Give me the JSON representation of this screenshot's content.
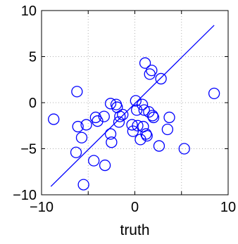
{
  "chart_data": {
    "type": "scatter",
    "title": "",
    "xlabel": "truth",
    "ylabel": "",
    "xlim": [
      -10,
      10
    ],
    "ylim": [
      -10,
      10
    ],
    "xticks": [
      -10,
      0,
      10
    ],
    "yticks": [
      -10,
      -5,
      0,
      5,
      10
    ],
    "xtick_labels": [
      "−10",
      "0",
      "10"
    ],
    "ytick_labels": [
      "−10",
      "−5",
      "0",
      "5",
      "10"
    ],
    "grid": true,
    "color": "#0000ff",
    "points": [
      {
        "x": -8.7,
        "y": -1.8
      },
      {
        "x": -6.2,
        "y": 1.2
      },
      {
        "x": -6.1,
        "y": -2.6
      },
      {
        "x": -6.3,
        "y": -5.4
      },
      {
        "x": -5.7,
        "y": -3.8
      },
      {
        "x": -5.5,
        "y": -8.9
      },
      {
        "x": -5.2,
        "y": -2.4
      },
      {
        "x": -4.4,
        "y": -6.3
      },
      {
        "x": -4.2,
        "y": -1.6
      },
      {
        "x": -4.0,
        "y": -2.0
      },
      {
        "x": -3.3,
        "y": -1.5
      },
      {
        "x": -3.2,
        "y": -6.8
      },
      {
        "x": -2.6,
        "y": -0.1
      },
      {
        "x": -2.6,
        "y": -3.4
      },
      {
        "x": -2.5,
        "y": -4.3
      },
      {
        "x": -2.0,
        "y": -0.2
      },
      {
        "x": -1.9,
        "y": -0.5
      },
      {
        "x": -1.7,
        "y": -2.1
      },
      {
        "x": -1.6,
        "y": -1.5
      },
      {
        "x": -1.3,
        "y": -1.3
      },
      {
        "x": -0.3,
        "y": -2.4
      },
      {
        "x": -0.2,
        "y": -3.1
      },
      {
        "x": 0.1,
        "y": 0.2
      },
      {
        "x": 0.2,
        "y": -0.8
      },
      {
        "x": 0.3,
        "y": -2.5
      },
      {
        "x": 0.6,
        "y": -4.0
      },
      {
        "x": 0.8,
        "y": -0.2
      },
      {
        "x": 0.9,
        "y": -2.6
      },
      {
        "x": 1.0,
        "y": -0.8
      },
      {
        "x": 1.1,
        "y": 4.3
      },
      {
        "x": 1.2,
        "y": -3.4
      },
      {
        "x": 1.3,
        "y": -3.6
      },
      {
        "x": 1.5,
        "y": -1.0
      },
      {
        "x": 1.6,
        "y": 3.1
      },
      {
        "x": 1.8,
        "y": 3.5
      },
      {
        "x": 1.9,
        "y": -1.4
      },
      {
        "x": 2.0,
        "y": -1.6
      },
      {
        "x": 2.6,
        "y": -4.7
      },
      {
        "x": 2.8,
        "y": 2.6
      },
      {
        "x": 3.5,
        "y": -2.9
      },
      {
        "x": 3.7,
        "y": -1.6
      },
      {
        "x": 5.3,
        "y": -5.0
      },
      {
        "x": 8.5,
        "y": 1.0
      }
    ],
    "line": {
      "x": [
        -9.0,
        8.5
      ],
      "y": [
        -9.1,
        8.4
      ]
    }
  }
}
